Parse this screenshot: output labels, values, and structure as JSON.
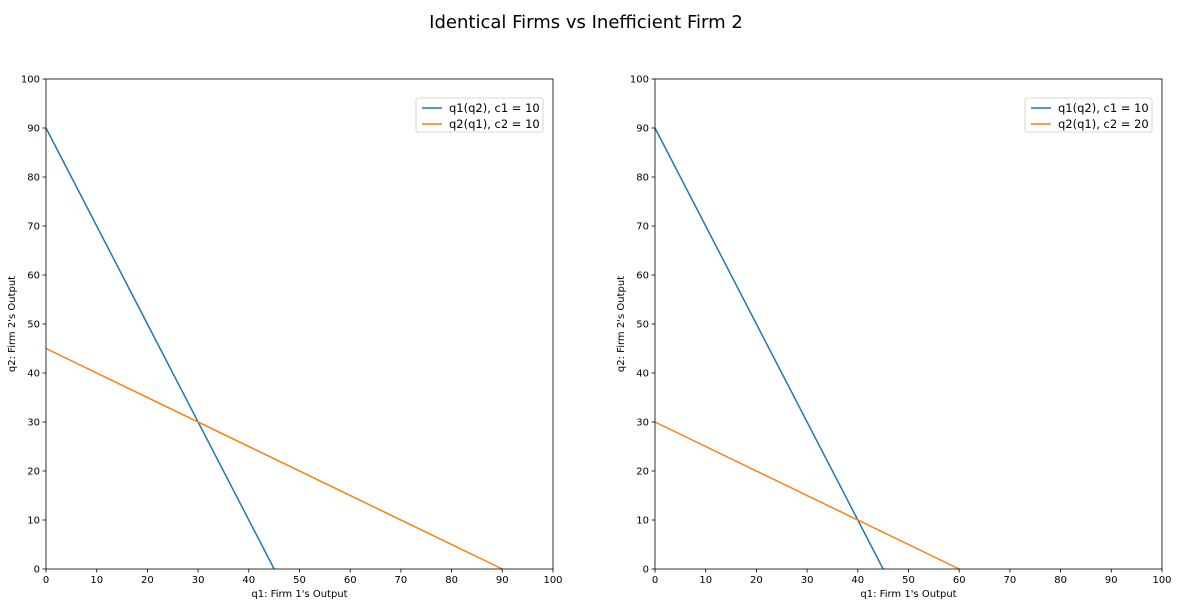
{
  "figure": {
    "title": "Identical Firms vs Inefficient Firm 2"
  },
  "chart_data": [
    {
      "type": "line",
      "xlabel": "q1: Firm 1's Output",
      "ylabel": "q2: Firm 2's Output",
      "xlim": [
        0,
        100
      ],
      "ylim": [
        0,
        100
      ],
      "xticks": [
        0,
        10,
        20,
        30,
        40,
        50,
        60,
        70,
        80,
        90,
        100
      ],
      "yticks": [
        0,
        10,
        20,
        30,
        40,
        50,
        60,
        70,
        80,
        90,
        100
      ],
      "grid": false,
      "legend_position": "top-right",
      "series": [
        {
          "name": "q1(q2), c1 = 10",
          "color": "#1f77b4",
          "points": [
            [
              0,
              90
            ],
            [
              45,
              0
            ]
          ]
        },
        {
          "name": "q2(q1), c2 = 10",
          "color": "#ff7f0e",
          "points": [
            [
              0,
              45
            ],
            [
              90,
              0
            ]
          ]
        }
      ]
    },
    {
      "type": "line",
      "xlabel": "q1: Firm 1's Output",
      "ylabel": "q2: Firm 2's Output",
      "xlim": [
        0,
        100
      ],
      "ylim": [
        0,
        100
      ],
      "xticks": [
        0,
        10,
        20,
        30,
        40,
        50,
        60,
        70,
        80,
        90,
        100
      ],
      "yticks": [
        0,
        10,
        20,
        30,
        40,
        50,
        60,
        70,
        80,
        90,
        100
      ],
      "grid": false,
      "legend_position": "top-right",
      "series": [
        {
          "name": "q1(q2), c1 = 10",
          "color": "#1f77b4",
          "points": [
            [
              0,
              90
            ],
            [
              45,
              0
            ]
          ]
        },
        {
          "name": "q2(q1), c2 = 20",
          "color": "#ff7f0e",
          "points": [
            [
              0,
              30
            ],
            [
              60,
              0
            ]
          ]
        }
      ]
    }
  ]
}
